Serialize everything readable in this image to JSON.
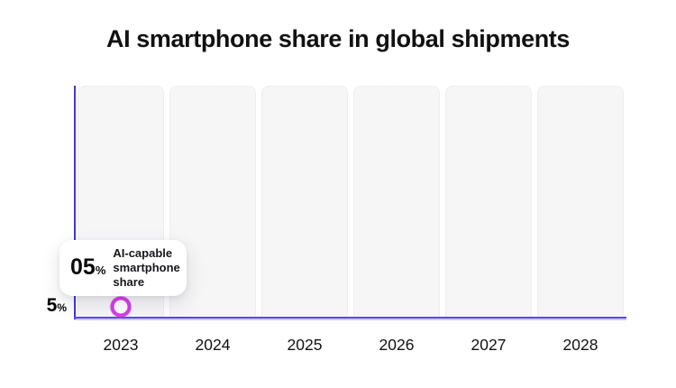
{
  "chart_data": {
    "type": "scatter",
    "title": "AI smartphone share in global shipments",
    "categories": [
      "2023",
      "2024",
      "2025",
      "2026",
      "2027",
      "2028"
    ],
    "series": [
      {
        "name": "AI-capable smartphone share",
        "values": [
          5,
          null,
          null,
          null,
          null,
          null
        ]
      }
    ],
    "ylim": [
      0,
      100
    ],
    "yticks": [
      {
        "value": 5,
        "label": "5%"
      }
    ],
    "reference_line": {
      "y": 5,
      "style": "dashed",
      "gradient": [
        "#5b7cf7",
        "#2ee6d4"
      ]
    },
    "grid": "vertical-column-bands",
    "legend": "none",
    "annotations": [
      {
        "x": "2023",
        "y": 5,
        "text": "05% AI-capable smartphone share"
      }
    ]
  },
  "tooltip": {
    "value": "05",
    "unit": "%",
    "label": "AI-capable smartphone share"
  },
  "y_axis": {
    "tick_value": "5",
    "tick_unit": "%"
  },
  "colors": {
    "axis_line": "#4431ee",
    "base_line": "#5b47f0",
    "dash_gradient_start": "#5b7cf7",
    "dash_gradient_end": "#2ee6d4",
    "point_stroke": "#d53de8",
    "band_fill": "#f6f6f7",
    "text": "#111111"
  }
}
